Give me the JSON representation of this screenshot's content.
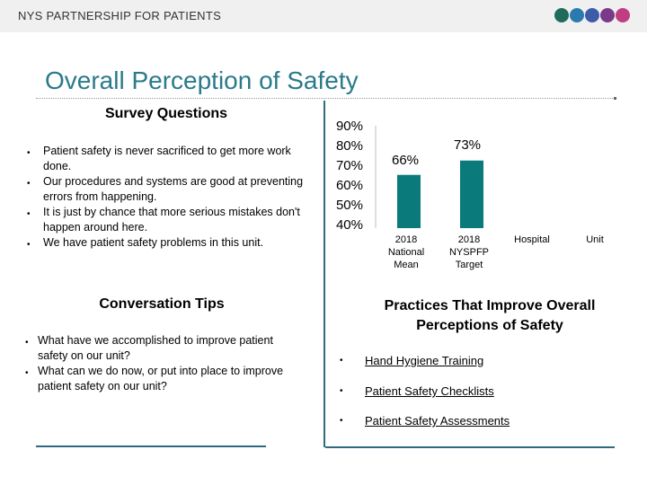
{
  "header": {
    "org": "NYS PARTNERSHIP FOR PATIENTS"
  },
  "title": "Overall Perception of Safety",
  "dot_colors": [
    "#1e6b5a",
    "#2a7ab0",
    "#3d5ca8",
    "#7a3a8a",
    "#c03d82"
  ],
  "survey": {
    "heading": "Survey Questions",
    "items": [
      "Patient safety is never sacrificed to get more work done.",
      "Our procedures and systems are good at preventing errors from happening.",
      "It is just by chance that more serious mistakes don't happen around here.",
      "We have patient safety problems in this unit."
    ]
  },
  "tips": {
    "heading": "Conversation Tips",
    "items": [
      "What have we accomplished to improve patient safety on our unit?",
      "What can we do now, or put into place to improve patient safety on our unit?"
    ]
  },
  "practices": {
    "heading": "Practices That Improve Overall Perceptions of Safety",
    "items": [
      "Hand Hygiene Training",
      "Patient Safety Checklists",
      "Patient Safety Assessments"
    ]
  },
  "chart_data": {
    "type": "bar",
    "categories": [
      "2018 National Mean",
      "2018 NYSPFP Target",
      "Hospital",
      "Unit"
    ],
    "values": [
      66,
      73,
      null,
      null
    ],
    "value_labels": [
      "66%",
      "73%",
      "",
      ""
    ],
    "ytick_labels": [
      "90%",
      "80%",
      "70%",
      "60%",
      "50%",
      "40%"
    ],
    "ylim": [
      40,
      90
    ],
    "color": "#0a7a7a"
  }
}
